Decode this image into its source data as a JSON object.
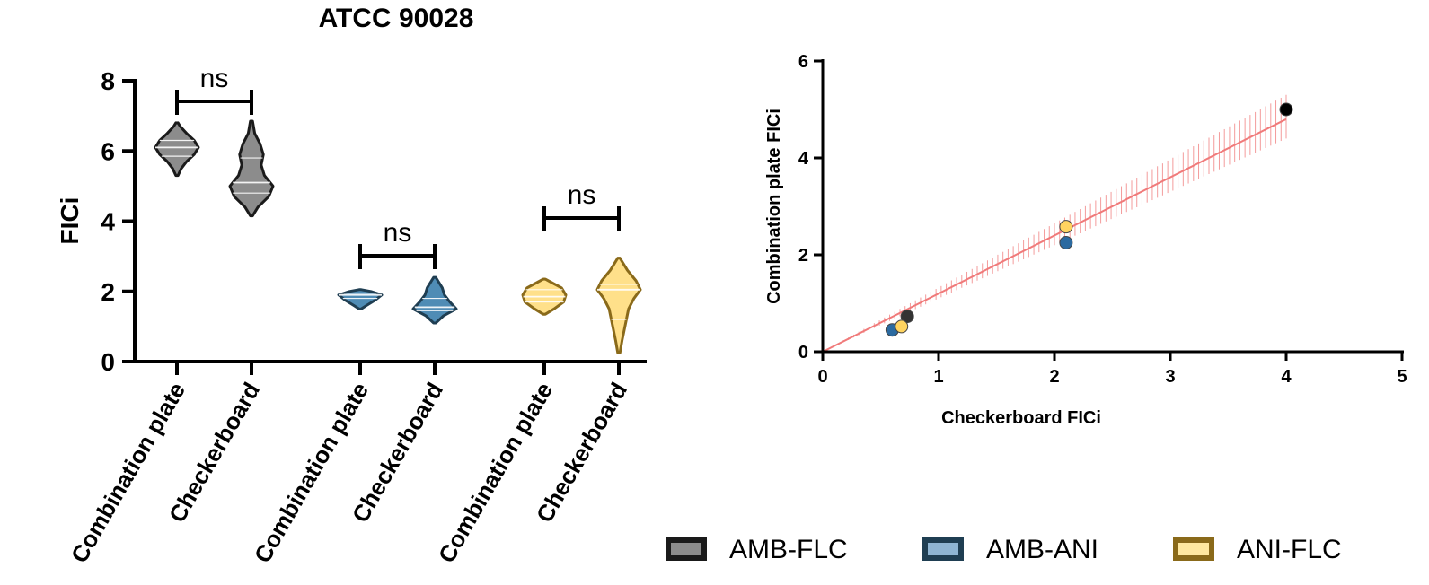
{
  "chart_data": [
    {
      "type": "violin",
      "title": "ATCC 90028",
      "ylabel": "FICi",
      "ylim": [
        0,
        8
      ],
      "yticks": [
        "0",
        "2",
        "4",
        "6",
        "8"
      ],
      "categories": [
        "Combination plate",
        "Checkerboard",
        "Combination plate",
        "Checkerboard",
        "Combination plate",
        "Checkerboard"
      ],
      "groups": [
        {
          "name": "AMB-FLC",
          "color": "#8c8c8c",
          "significance": "ns",
          "violins": [
            {
              "category": "Combination plate",
              "min": 5.3,
              "max": 6.8,
              "median": 6.1,
              "q1": 5.85,
              "q3": 6.3,
              "shape": [
                [
                  5.3,
                  0.05
                ],
                [
                  5.5,
                  0.2
                ],
                [
                  5.7,
                  0.45
                ],
                [
                  5.9,
                  0.8
                ],
                [
                  6.1,
                  1.0
                ],
                [
                  6.3,
                  0.8
                ],
                [
                  6.5,
                  0.45
                ],
                [
                  6.7,
                  0.15
                ],
                [
                  6.8,
                  0.05
                ]
              ]
            },
            {
              "category": "Checkerboard",
              "min": 4.15,
              "max": 6.85,
              "median": 5.1,
              "q1": 4.8,
              "q3": 5.8,
              "shape": [
                [
                  4.15,
                  0.05
                ],
                [
                  4.4,
                  0.3
                ],
                [
                  4.7,
                  0.8
                ],
                [
                  5.0,
                  1.0
                ],
                [
                  5.3,
                  0.6
                ],
                [
                  5.6,
                  0.45
                ],
                [
                  5.9,
                  0.55
                ],
                [
                  6.2,
                  0.4
                ],
                [
                  6.5,
                  0.15
                ],
                [
                  6.85,
                  0.05
                ]
              ]
            }
          ]
        },
        {
          "name": "AMB-ANI",
          "color": "#4f8cb5",
          "significance": "ns",
          "violins": [
            {
              "category": "Combination plate",
              "min": 1.5,
              "max": 2.05,
              "median": 1.9,
              "q1": 1.8,
              "q3": 1.95,
              "shape": [
                [
                  1.5,
                  0.05
                ],
                [
                  1.6,
                  0.3
                ],
                [
                  1.75,
                  0.7
                ],
                [
                  1.9,
                  1.0
                ],
                [
                  2.0,
                  0.5
                ],
                [
                  2.05,
                  0.05
                ]
              ]
            },
            {
              "category": "Checkerboard",
              "min": 1.1,
              "max": 2.4,
              "median": 1.55,
              "q1": 1.45,
              "q3": 1.8,
              "shape": [
                [
                  1.1,
                  0.05
                ],
                [
                  1.3,
                  0.4
                ],
                [
                  1.5,
                  1.0
                ],
                [
                  1.7,
                  0.7
                ],
                [
                  1.9,
                  0.45
                ],
                [
                  2.1,
                  0.35
                ],
                [
                  2.3,
                  0.15
                ],
                [
                  2.4,
                  0.05
                ]
              ]
            }
          ]
        },
        {
          "name": "ANI-FLC",
          "color": "#ffe08a",
          "significance": "ns",
          "violins": [
            {
              "category": "Combination plate",
              "min": 1.35,
              "max": 2.35,
              "median": 1.85,
              "q1": 1.7,
              "q3": 2.05,
              "shape": [
                [
                  1.35,
                  0.05
                ],
                [
                  1.5,
                  0.45
                ],
                [
                  1.7,
                  0.9
                ],
                [
                  1.9,
                  1.0
                ],
                [
                  2.1,
                  0.8
                ],
                [
                  2.25,
                  0.35
                ],
                [
                  2.35,
                  0.05
                ]
              ]
            },
            {
              "category": "Checkerboard",
              "min": 0.25,
              "max": 2.95,
              "median": 2.05,
              "q1": 1.2,
              "q3": 2.2,
              "shape": [
                [
                  0.25,
                  0.05
                ],
                [
                  0.6,
                  0.15
                ],
                [
                  0.9,
                  0.25
                ],
                [
                  1.2,
                  0.35
                ],
                [
                  1.5,
                  0.45
                ],
                [
                  1.8,
                  0.7
                ],
                [
                  2.05,
                  1.0
                ],
                [
                  2.3,
                  0.8
                ],
                [
                  2.6,
                  0.4
                ],
                [
                  2.95,
                  0.05
                ]
              ]
            }
          ]
        }
      ],
      "legend": {
        "position": "bottom-right",
        "entries": [
          {
            "label": "AMB-FLC",
            "fill": "#8c8c8c",
            "edge": "#1a1a1a"
          },
          {
            "label": "AMB-ANI",
            "fill": "#8fb5d3",
            "edge": "#1f3e52"
          },
          {
            "label": "ANI-FLC",
            "fill": "#ffe8a0",
            "edge": "#8a6a1a"
          }
        ]
      }
    },
    {
      "type": "scatter",
      "xlabel": "Checkerboard FICi",
      "ylabel": "Combination plate FICi",
      "xlim": [
        0,
        5
      ],
      "ylim": [
        0,
        6
      ],
      "xticks": [
        "0",
        "1",
        "2",
        "3",
        "4",
        "5"
      ],
      "yticks": [
        "0",
        "2",
        "4",
        "6"
      ],
      "points": [
        {
          "x": 0.73,
          "y": 0.73,
          "group": "AMB-FLC",
          "color": "#333333"
        },
        {
          "x": 4.0,
          "y": 5.0,
          "group": "AMB-FLC",
          "color": "#000000"
        },
        {
          "x": 0.6,
          "y": 0.45,
          "group": "AMB-ANI",
          "color": "#2b6aa0"
        },
        {
          "x": 2.1,
          "y": 2.25,
          "group": "AMB-ANI",
          "color": "#2b6aa0"
        },
        {
          "x": 0.68,
          "y": 0.52,
          "group": "ANI-FLC",
          "color": "#ffd460"
        },
        {
          "x": 2.1,
          "y": 2.58,
          "group": "ANI-FLC",
          "color": "#ffd460"
        }
      ],
      "fit": {
        "slope": 1.2,
        "intercept": 0.0,
        "x_range": [
          0,
          4
        ],
        "band_low": [
          0,
          4.4
        ],
        "band_high": [
          0,
          5.3
        ],
        "color": "#f07a7a"
      }
    }
  ]
}
